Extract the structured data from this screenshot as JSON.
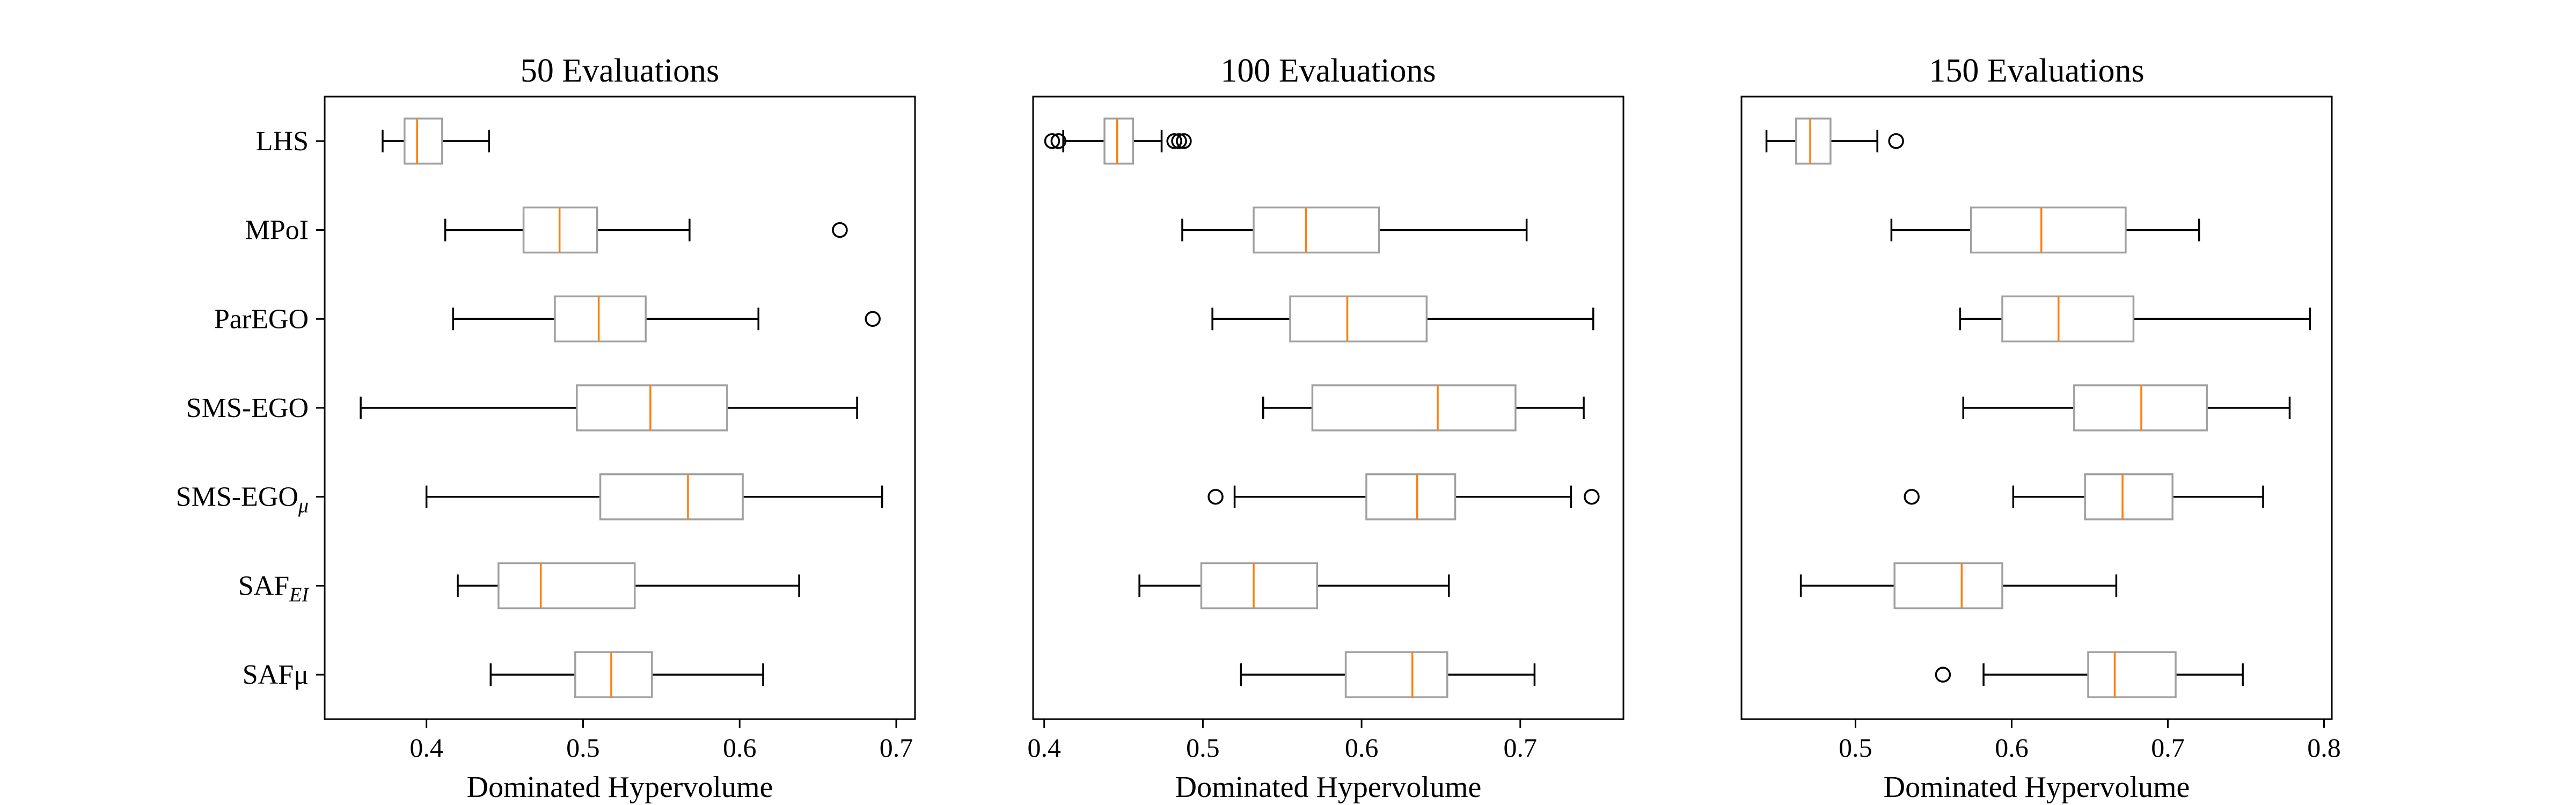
{
  "chart_data": [
    {
      "type": "boxplot",
      "title": "50 Evaluations",
      "xlabel": "Dominated Hypervolume",
      "xlim": [
        0.335,
        0.712
      ],
      "xticks": [
        0.4,
        0.5,
        0.6,
        0.7
      ],
      "xtick_labels": [
        "0.4",
        "0.5",
        "0.6",
        "0.7"
      ],
      "categories": [
        {
          "main": "LHS",
          "sub": ""
        },
        {
          "main": "MPoI",
          "sub": ""
        },
        {
          "main": "ParEGO",
          "sub": ""
        },
        {
          "main": "SMS-EGO",
          "sub": ""
        },
        {
          "main": "SMS-EGO",
          "sub": "μ"
        },
        {
          "main": "SAF",
          "sub": "EI"
        },
        {
          "main": "SAFμ",
          "sub": ""
        }
      ],
      "boxes": [
        {
          "whislo": 0.372,
          "q1": 0.386,
          "med": 0.394,
          "q3": 0.41,
          "whishi": 0.44,
          "fliers": []
        },
        {
          "whislo": 0.412,
          "q1": 0.462,
          "med": 0.485,
          "q3": 0.509,
          "whishi": 0.568,
          "fliers": [
            0.664
          ]
        },
        {
          "whislo": 0.417,
          "q1": 0.482,
          "med": 0.51,
          "q3": 0.54,
          "whishi": 0.612,
          "fliers": [
            0.685
          ]
        },
        {
          "whislo": 0.358,
          "q1": 0.496,
          "med": 0.543,
          "q3": 0.592,
          "whishi": 0.675,
          "fliers": []
        },
        {
          "whislo": 0.4,
          "q1": 0.511,
          "med": 0.567,
          "q3": 0.602,
          "whishi": 0.691,
          "fliers": []
        },
        {
          "whislo": 0.42,
          "q1": 0.446,
          "med": 0.473,
          "q3": 0.533,
          "whishi": 0.638,
          "fliers": []
        },
        {
          "whislo": 0.441,
          "q1": 0.495,
          "med": 0.518,
          "q3": 0.544,
          "whishi": 0.615,
          "fliers": []
        }
      ]
    },
    {
      "type": "boxplot",
      "title": "100 Evaluations",
      "xlabel": "Dominated Hypervolume",
      "xlim": [
        0.393,
        0.765
      ],
      "xticks": [
        0.4,
        0.5,
        0.6,
        0.7
      ],
      "xtick_labels": [
        "0.4",
        "0.5",
        "0.6",
        "0.7"
      ],
      "boxes": [
        {
          "whislo": 0.412,
          "q1": 0.438,
          "med": 0.446,
          "q3": 0.456,
          "whishi": 0.474,
          "fliers": [
            0.405,
            0.409,
            0.482,
            0.485,
            0.488
          ]
        },
        {
          "whislo": 0.487,
          "q1": 0.532,
          "med": 0.565,
          "q3": 0.611,
          "whishi": 0.704,
          "fliers": []
        },
        {
          "whislo": 0.506,
          "q1": 0.555,
          "med": 0.591,
          "q3": 0.641,
          "whishi": 0.746,
          "fliers": []
        },
        {
          "whislo": 0.538,
          "q1": 0.569,
          "med": 0.648,
          "q3": 0.697,
          "whishi": 0.74,
          "fliers": []
        },
        {
          "whislo": 0.52,
          "q1": 0.603,
          "med": 0.635,
          "q3": 0.659,
          "whishi": 0.732,
          "fliers": [
            0.508,
            0.745
          ]
        },
        {
          "whislo": 0.46,
          "q1": 0.499,
          "med": 0.532,
          "q3": 0.572,
          "whishi": 0.655,
          "fliers": []
        },
        {
          "whislo": 0.524,
          "q1": 0.59,
          "med": 0.632,
          "q3": 0.654,
          "whishi": 0.709,
          "fliers": []
        }
      ]
    },
    {
      "type": "boxplot",
      "title": "150 Evaluations",
      "xlabel": "Dominated Hypervolume",
      "xlim": [
        0.427,
        0.805
      ],
      "xticks": [
        0.5,
        0.6,
        0.7,
        0.8
      ],
      "xtick_labels": [
        "0.5",
        "0.6",
        "0.7",
        "0.8"
      ],
      "boxes": [
        {
          "whislo": 0.443,
          "q1": 0.462,
          "med": 0.471,
          "q3": 0.484,
          "whishi": 0.514,
          "fliers": [
            0.526
          ]
        },
        {
          "whislo": 0.523,
          "q1": 0.574,
          "med": 0.619,
          "q3": 0.673,
          "whishi": 0.72,
          "fliers": []
        },
        {
          "whislo": 0.567,
          "q1": 0.594,
          "med": 0.63,
          "q3": 0.678,
          "whishi": 0.791,
          "fliers": []
        },
        {
          "whislo": 0.569,
          "q1": 0.64,
          "med": 0.683,
          "q3": 0.725,
          "whishi": 0.778,
          "fliers": []
        },
        {
          "whislo": 0.601,
          "q1": 0.647,
          "med": 0.671,
          "q3": 0.703,
          "whishi": 0.761,
          "fliers": [
            0.536
          ]
        },
        {
          "whislo": 0.465,
          "q1": 0.525,
          "med": 0.568,
          "q3": 0.594,
          "whishi": 0.667,
          "fliers": []
        },
        {
          "whislo": 0.582,
          "q1": 0.649,
          "med": 0.666,
          "q3": 0.705,
          "whishi": 0.748,
          "fliers": [
            0.556
          ]
        }
      ]
    }
  ],
  "colors": {
    "box": "#a0a0a0",
    "median": "#ff7f0e",
    "whisker": "#000000",
    "frame": "#000000"
  }
}
